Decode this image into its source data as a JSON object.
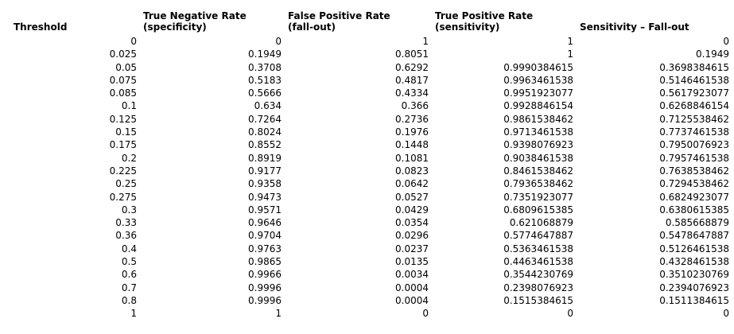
{
  "page": {
    "background_color": "#ffffff",
    "text_color": "#000000"
  },
  "chart_data": {
    "type": "table",
    "layout_hints": {
      "gridlines": false,
      "number_alignment": "right",
      "header_alignment": "left",
      "header_style": "bold-two-line"
    },
    "columns": [
      {
        "id": "threshold",
        "line1": "",
        "line2": "Threshold"
      },
      {
        "id": "true-negative-rate",
        "line1": "True Negative Rate",
        "line2": "(specificity)"
      },
      {
        "id": "false-positive-rate",
        "line1": "False Positive Rate",
        "line2": "(fall-out)"
      },
      {
        "id": "true-positive-rate",
        "line1": "True Positive Rate",
        "line2": "(sensitivity)"
      },
      {
        "id": "sensitivity-minus-fallout",
        "line1": "",
        "line2": "Sensitivity – Fall-out"
      }
    ],
    "rows": [
      [
        "0",
        "0",
        "1",
        "1",
        "0"
      ],
      [
        "0.025",
        "0.1949",
        "0.8051",
        "1",
        "0.1949"
      ],
      [
        "0.05",
        "0.3708",
        "0.6292",
        "0.9990384615",
        "0.3698384615"
      ],
      [
        "0.075",
        "0.5183",
        "0.4817",
        "0.9963461538",
        "0.5146461538"
      ],
      [
        "0.085",
        "0.5666",
        "0.4334",
        "0.9951923077",
        "0.5617923077"
      ],
      [
        "0.1",
        "0.634",
        "0.366",
        "0.9928846154",
        "0.6268846154"
      ],
      [
        "0.125",
        "0.7264",
        "0.2736",
        "0.9861538462",
        "0.7125538462"
      ],
      [
        "0.15",
        "0.8024",
        "0.1976",
        "0.9713461538",
        "0.7737461538"
      ],
      [
        "0.175",
        "0.8552",
        "0.1448",
        "0.9398076923",
        "0.7950076923"
      ],
      [
        "0.2",
        "0.8919",
        "0.1081",
        "0.9038461538",
        "0.7957461538"
      ],
      [
        "0.225",
        "0.9177",
        "0.0823",
        "0.8461538462",
        "0.7638538462"
      ],
      [
        "0.25",
        "0.9358",
        "0.0642",
        "0.7936538462",
        "0.7294538462"
      ],
      [
        "0.275",
        "0.9473",
        "0.0527",
        "0.7351923077",
        "0.6824923077"
      ],
      [
        "0.3",
        "0.9571",
        "0.0429",
        "0.6809615385",
        "0.6380615385"
      ],
      [
        "0.33",
        "0.9646",
        "0.0354",
        "0.621068879",
        "0.585668879"
      ],
      [
        "0.36",
        "0.9704",
        "0.0296",
        "0.5774647887",
        "0.5478647887"
      ],
      [
        "0.4",
        "0.9763",
        "0.0237",
        "0.5363461538",
        "0.5126461538"
      ],
      [
        "0.5",
        "0.9865",
        "0.0135",
        "0.4463461538",
        "0.4328461538"
      ],
      [
        "0.6",
        "0.9966",
        "0.0034",
        "0.3544230769",
        "0.3510230769"
      ],
      [
        "0.7",
        "0.9996",
        "0.0004",
        "0.2398076923",
        "0.2394076923"
      ],
      [
        "0.8",
        "0.9996",
        "0.0004",
        "0.1515384615",
        "0.1511384615"
      ],
      [
        "1",
        "1",
        "0",
        "0",
        "0"
      ]
    ]
  }
}
